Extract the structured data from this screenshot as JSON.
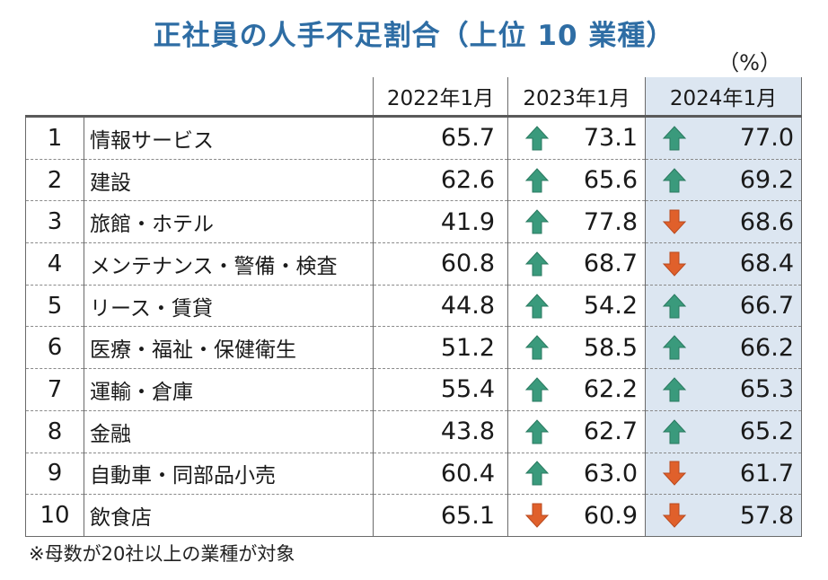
{
  "chart_data": {
    "type": "table",
    "title": "正社員の人手不足割合（上位 10 業種）",
    "unit": "（%）",
    "columns": [
      "2022年1月",
      "2023年1月",
      "2024年1月"
    ],
    "highlight_column": "2024年1月",
    "rows": [
      {
        "rank": "1",
        "industry": "情報サービス",
        "values": [
          "65.7",
          "73.1",
          "77.0"
        ],
        "trend": [
          "",
          "up",
          "up"
        ]
      },
      {
        "rank": "2",
        "industry": "建設",
        "values": [
          "62.6",
          "65.6",
          "69.2"
        ],
        "trend": [
          "",
          "up",
          "up"
        ]
      },
      {
        "rank": "3",
        "industry": "旅館・ホテル",
        "values": [
          "41.9",
          "77.8",
          "68.6"
        ],
        "trend": [
          "",
          "up",
          "down"
        ]
      },
      {
        "rank": "4",
        "industry": "メンテナンス・警備・検査",
        "values": [
          "60.8",
          "68.7",
          "68.4"
        ],
        "trend": [
          "",
          "up",
          "down"
        ]
      },
      {
        "rank": "5",
        "industry": "リース・賃貸",
        "values": [
          "44.8",
          "54.2",
          "66.7"
        ],
        "trend": [
          "",
          "up",
          "up"
        ]
      },
      {
        "rank": "6",
        "industry": "医療・福祉・保健衛生",
        "values": [
          "51.2",
          "58.5",
          "66.2"
        ],
        "trend": [
          "",
          "up",
          "up"
        ]
      },
      {
        "rank": "7",
        "industry": "運輸・倉庫",
        "values": [
          "55.4",
          "62.2",
          "65.3"
        ],
        "trend": [
          "",
          "up",
          "up"
        ]
      },
      {
        "rank": "8",
        "industry": "金融",
        "values": [
          "43.8",
          "62.7",
          "65.2"
        ],
        "trend": [
          "",
          "up",
          "up"
        ]
      },
      {
        "rank": "9",
        "industry": "自動車・同部品小売",
        "values": [
          "60.4",
          "63.0",
          "61.7"
        ],
        "trend": [
          "",
          "up",
          "down"
        ]
      },
      {
        "rank": "10",
        "industry": "飲食店",
        "values": [
          "65.1",
          "60.9",
          "57.8"
        ],
        "trend": [
          "",
          "down",
          "down"
        ]
      }
    ],
    "footnote": "※母数が20社以上の業種が対象"
  },
  "colors": {
    "title": "#2e6da4",
    "arrow_up": "#3a9a7c",
    "arrow_down": "#e0602b",
    "highlight_bg": "#dce6f1"
  },
  "icons": {
    "up": "arrow-up-icon",
    "down": "arrow-down-icon"
  }
}
